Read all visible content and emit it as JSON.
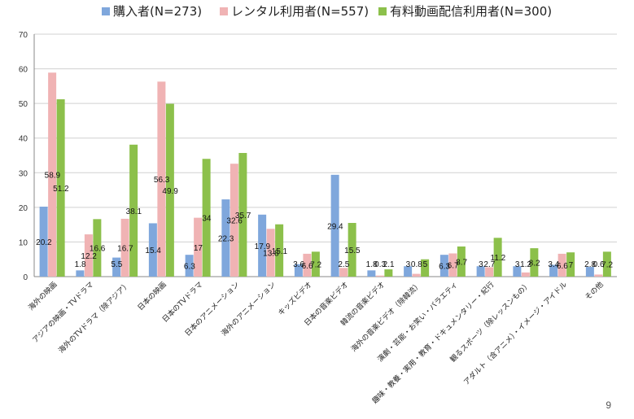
{
  "page_number": "9",
  "chart_data": {
    "type": "bar",
    "title": "",
    "xlabel": "",
    "ylabel": "",
    "ylim": [
      0,
      70
    ],
    "ytick_step": 10,
    "grid": true,
    "legend_position": "top",
    "categories": [
      "海外の映画",
      "アジアの映画・TVドラマ",
      "海外のTVドラマ（除アジア）",
      "日本の映画",
      "日本のTVドラマ",
      "日本のアニメーション",
      "海外のアニメーション",
      "キッズビデオ",
      "日本の音楽ビデオ",
      "韓流の音楽ビデオ",
      "海外の音楽ビデオ（除韓流）",
      "演劇・芸能・お笑い・バラエティ",
      "趣味・教養・実用・教育・ドキュメンタリー・紀行",
      "観るスポーツ（除レッスンもの）",
      "アダルト（含アニメ）・イメージ・アイドル",
      "その他"
    ],
    "series": [
      {
        "name": "購入者(N=273)",
        "color": "#7fa7dc",
        "values": [
          20.2,
          1.8,
          5.5,
          15.4,
          6.3,
          22.3,
          17.9,
          3.6,
          29.4,
          1.8,
          3,
          6.3,
          3,
          3,
          3.4,
          2.8
        ]
      },
      {
        "name": "レンタル利用者(N=557)",
        "color": "#f0b3b4",
        "values": [
          58.9,
          12.2,
          16.7,
          56.3,
          17,
          32.6,
          13.8,
          6.6,
          2.5,
          0.3,
          0.8,
          6.7,
          2.7,
          1.2,
          6.6,
          0.6
        ]
      },
      {
        "name": "有料動画配信利用者(N=300)",
        "color": "#8cc04b",
        "values": [
          51.2,
          16.6,
          38.1,
          49.9,
          34,
          35.7,
          15.1,
          7.2,
          15.5,
          2.1,
          5,
          8.7,
          11.2,
          8.2,
          7,
          7.2
        ]
      }
    ]
  }
}
